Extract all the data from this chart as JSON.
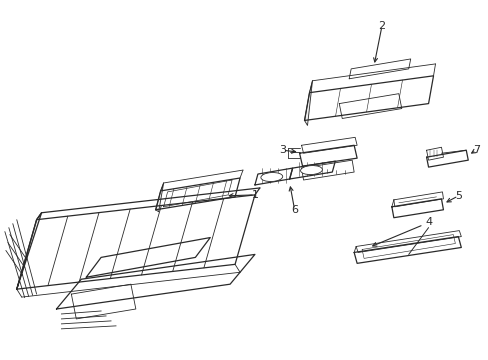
{
  "bg_color": "#ffffff",
  "line_color": "#2a2a2a",
  "lw_main": 0.9,
  "lw_thin": 0.6,
  "fig_width": 4.89,
  "fig_height": 3.6,
  "dpi": 100
}
